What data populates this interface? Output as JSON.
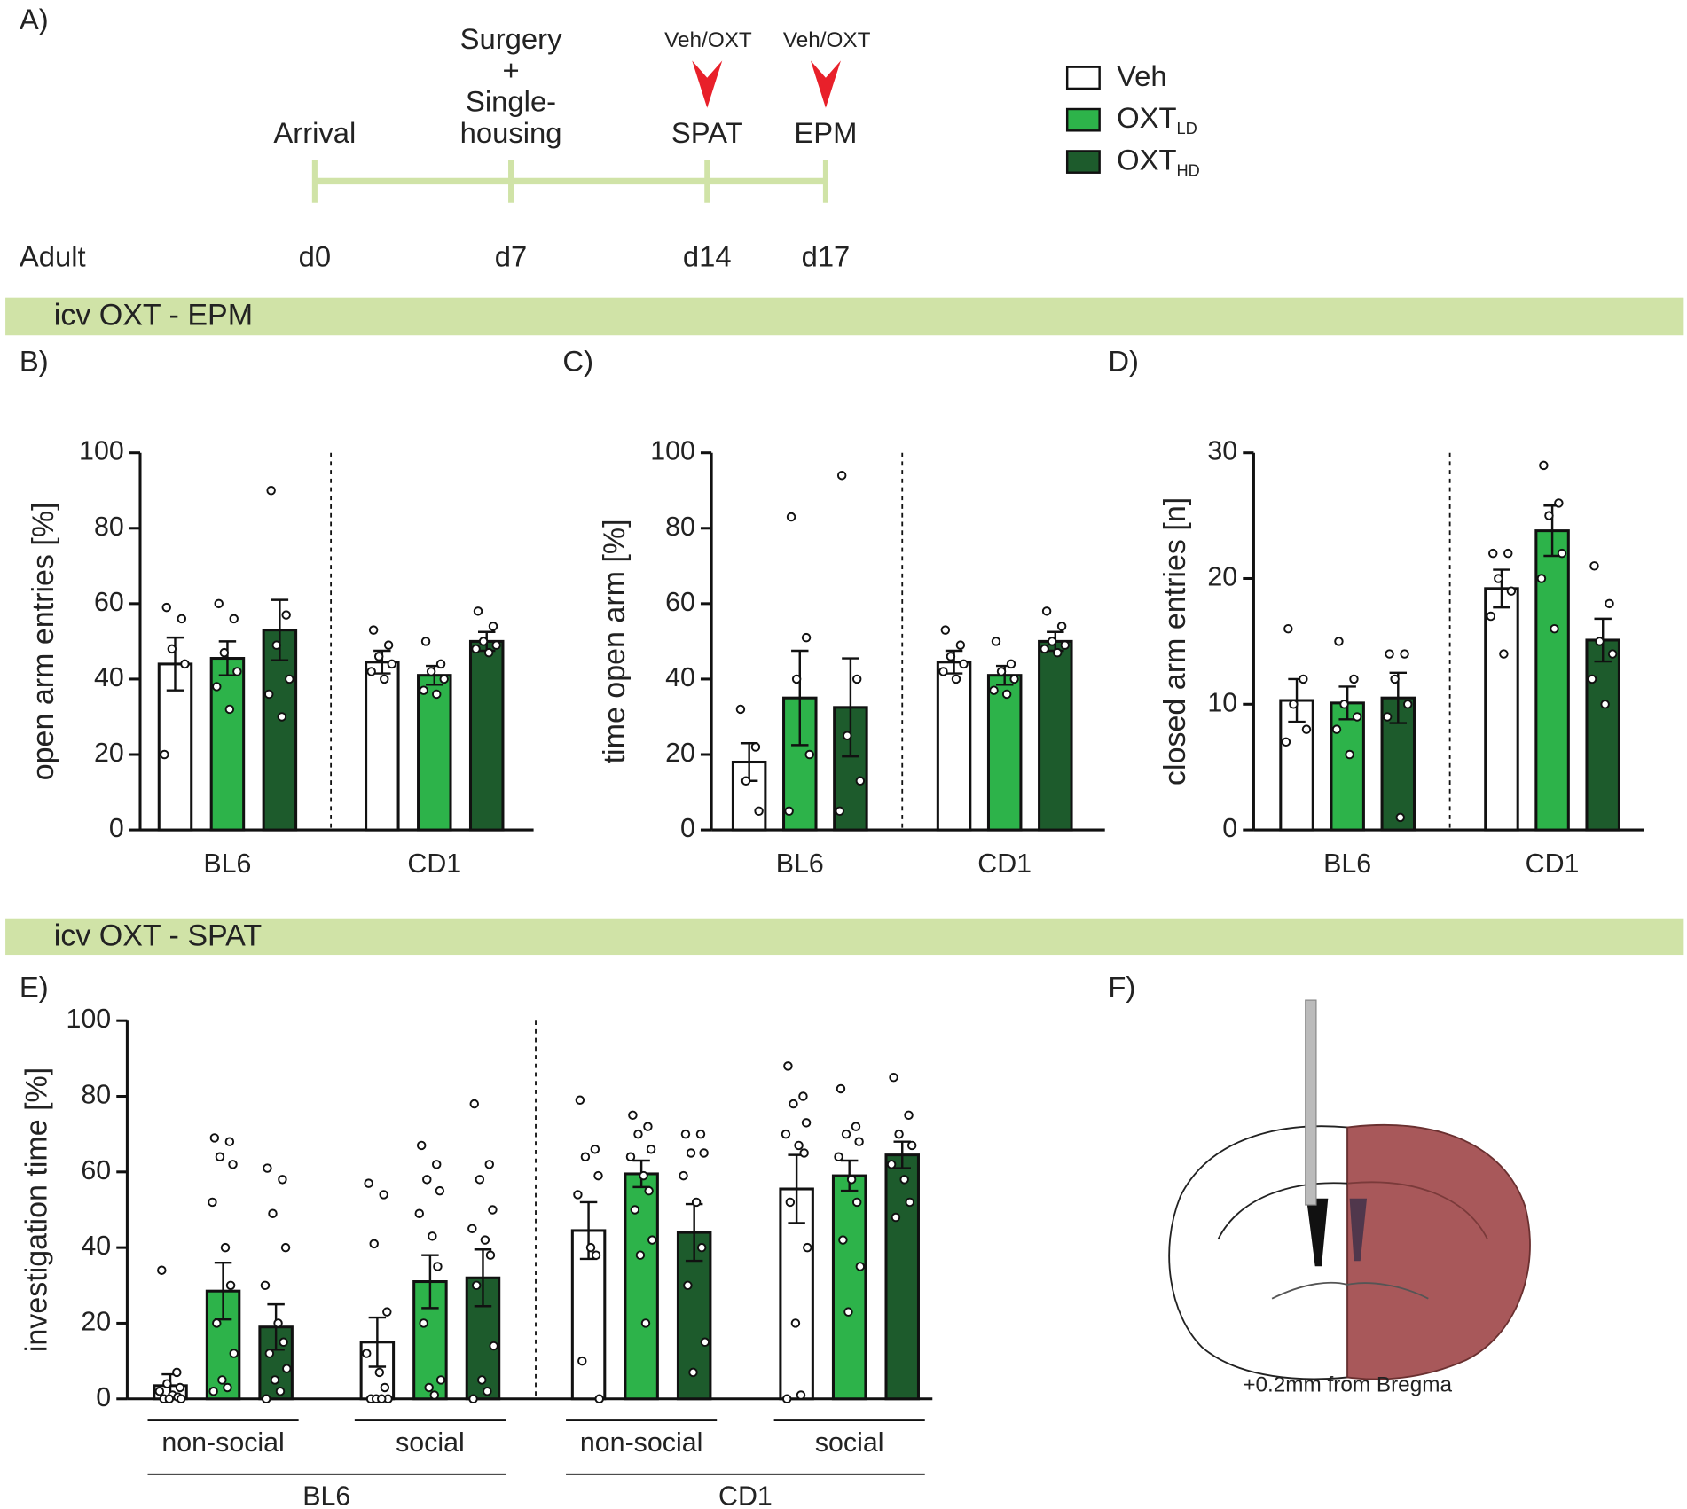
{
  "panels": [
    "A)",
    "B)",
    "C)",
    "D)",
    "E)",
    "F)"
  ],
  "timeline": {
    "stage": "Adult",
    "events": [
      {
        "label": [
          "Arrival"
        ],
        "day": "d0"
      },
      {
        "label": [
          "Surgery",
          "+",
          "Single-",
          "housing"
        ],
        "day": "d7"
      },
      {
        "label": [
          "SPAT"
        ],
        "day": "d14",
        "treatment": "Veh/OXT"
      },
      {
        "label": [
          "EPM"
        ],
        "day": "d17",
        "treatment": "Veh/OXT"
      }
    ]
  },
  "legend": [
    {
      "name": "Veh",
      "color": "#ffffff"
    },
    {
      "name": "OXT",
      "sub": "LD",
      "color": "#2db34a"
    },
    {
      "name": "OXT",
      "sub": "HD",
      "color": "#1d5b2c"
    }
  ],
  "sections": [
    "icv OXT - EPM",
    "icv OXT - SPAT"
  ],
  "panel_f": {
    "caption": "+0.2mm from Bregma"
  },
  "chart_data": [
    {
      "type": "bar",
      "ylabel": "open arm entries [%]",
      "ylim": [
        0,
        100
      ],
      "yticks": [
        0,
        20,
        40,
        60,
        80,
        100
      ],
      "categories": [
        "BL6",
        "CD1"
      ],
      "series": [
        {
          "color": "#ffffff",
          "values": [
            44,
            44.5
          ],
          "errors": [
            7,
            3
          ],
          "points": [
            [
              59,
              56,
              48,
              44,
              20
            ],
            [
              53,
              49,
              46,
              44,
              42,
              40
            ]
          ]
        },
        {
          "color": "#2db34a",
          "values": [
            45.5,
            41
          ],
          "errors": [
            4.5,
            2.5
          ],
          "points": [
            [
              60,
              56,
              47,
              42,
              38,
              32
            ],
            [
              50,
              44,
              42,
              40,
              37,
              36
            ]
          ]
        },
        {
          "color": "#1d5b2c",
          "values": [
            53,
            50
          ],
          "errors": [
            8,
            2.5
          ],
          "points": [
            [
              90,
              57,
              49,
              40,
              36,
              30
            ],
            [
              58,
              54,
              50,
              49,
              48,
              47
            ]
          ]
        }
      ]
    },
    {
      "type": "bar",
      "ylabel": "time open arm [%]",
      "ylim": [
        0,
        100
      ],
      "yticks": [
        0,
        20,
        40,
        60,
        80,
        100
      ],
      "categories": [
        "BL6",
        "CD1"
      ],
      "series": [
        {
          "color": "#ffffff",
          "values": [
            18,
            44.5
          ],
          "errors": [
            5,
            3
          ],
          "points": [
            [
              32,
              22,
              13,
              5
            ],
            [
              53,
              49,
              46,
              44,
              42,
              40
            ]
          ]
        },
        {
          "color": "#2db34a",
          "values": [
            35,
            41
          ],
          "errors": [
            12.5,
            2.5
          ],
          "points": [
            [
              83,
              51,
              40,
              20,
              5
            ],
            [
              50,
              44,
              42,
              40,
              37,
              36
            ]
          ]
        },
        {
          "color": "#1d5b2c",
          "values": [
            32.5,
            50
          ],
          "errors": [
            13,
            2.5
          ],
          "points": [
            [
              94,
              40,
              25,
              13,
              5
            ],
            [
              58,
              54,
              50,
              49,
              48,
              47
            ]
          ]
        }
      ]
    },
    {
      "type": "bar",
      "ylabel": "closed arm entries [n]",
      "ylim": [
        0,
        30
      ],
      "yticks": [
        0,
        10,
        20,
        30
      ],
      "categories": [
        "BL6",
        "CD1"
      ],
      "series": [
        {
          "color": "#ffffff",
          "values": [
            10.3,
            19.2
          ],
          "errors": [
            1.7,
            1.5
          ],
          "points": [
            [
              16,
              12,
              10,
              8,
              7
            ],
            [
              22,
              22,
              20,
              19,
              17,
              14
            ]
          ]
        },
        {
          "color": "#2db34a",
          "values": [
            10.1,
            23.8
          ],
          "errors": [
            1.3,
            2
          ],
          "points": [
            [
              15,
              12,
              10,
              9,
              8,
              6
            ],
            [
              29,
              26,
              25,
              22,
              20,
              16
            ]
          ]
        },
        {
          "color": "#1d5b2c",
          "values": [
            10.5,
            15.1
          ],
          "errors": [
            2,
            1.7
          ],
          "points": [
            [
              14,
              14,
              12,
              10,
              9,
              1
            ],
            [
              21,
              18,
              15,
              14,
              12,
              10
            ]
          ]
        }
      ]
    },
    {
      "type": "bar",
      "ylabel": "investigation time [%]",
      "ylim": [
        0,
        100
      ],
      "yticks": [
        0,
        20,
        40,
        60,
        80,
        100
      ],
      "categories": [
        "non-social",
        "social",
        "non-social",
        "social"
      ],
      "groups": [
        "BL6",
        "CD1"
      ],
      "series": [
        {
          "color": "#ffffff",
          "values": [
            3.5,
            15,
            44.5,
            55.5
          ],
          "errors": [
            3,
            6.5,
            7.5,
            9
          ],
          "points": [
            [
              34,
              7,
              4,
              3,
              2,
              1,
              0.5,
              0,
              0,
              0
            ],
            [
              57,
              54,
              41,
              23,
              12,
              7,
              3,
              0,
              0,
              0,
              0
            ],
            [
              79,
              66,
              64,
              59,
              54,
              40,
              38,
              10,
              0
            ],
            [
              88,
              80,
              78,
              73,
              70,
              67,
              65,
              52,
              40,
              20,
              1,
              0
            ]
          ]
        },
        {
          "color": "#2db34a",
          "values": [
            28.5,
            31,
            59.5,
            59
          ],
          "errors": [
            7.5,
            7,
            3.5,
            4
          ],
          "points": [
            [
              69,
              68,
              64,
              62,
              52,
              40,
              30,
              20,
              12,
              5,
              3,
              2
            ],
            [
              67,
              62,
              58,
              55,
              49,
              43,
              35,
              20,
              5,
              3,
              1
            ],
            [
              75,
              72,
              70,
              66,
              64,
              59,
              55,
              50,
              42,
              38,
              20
            ],
            [
              82,
              72,
              70,
              68,
              64,
              58,
              52,
              42,
              35,
              23
            ]
          ]
        },
        {
          "color": "#1d5b2c",
          "values": [
            19,
            32,
            44,
            64.5
          ],
          "errors": [
            6,
            7.5,
            7.5,
            3.5
          ],
          "points": [
            [
              61,
              58,
              49,
              40,
              30,
              20,
              15,
              12,
              8,
              5,
              2,
              0
            ],
            [
              78,
              62,
              58,
              50,
              45,
              42,
              38,
              30,
              14,
              5,
              2,
              0
            ],
            [
              70,
              70,
              65,
              65,
              59,
              52,
              40,
              30,
              15,
              7
            ],
            [
              85,
              75,
              70,
              67,
              62,
              58,
              52,
              48
            ]
          ]
        }
      ]
    }
  ]
}
